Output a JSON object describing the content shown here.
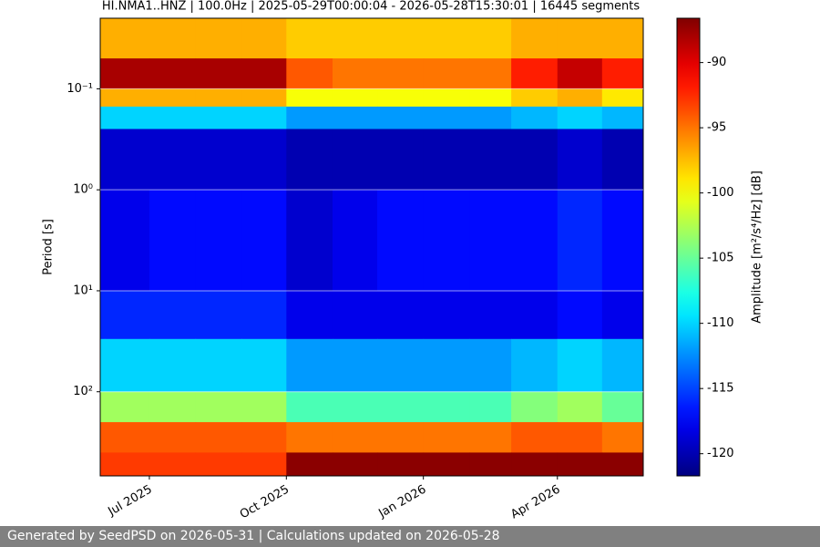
{
  "chart_data": {
    "type": "heatmap",
    "title": "HI.NMA1..HNZ | 100.0Hz | 2025-05-29T00:00:04 - 2026-05-28T15:30:01 | 16445 segments",
    "y_label": "Period [s]",
    "colorbar_label": "Amplitude [m²/s⁴/Hz] [dB]",
    "colormap": "jet",
    "x": [
      "2025-05",
      "2025-06",
      "2025-07",
      "2025-08",
      "2025-09",
      "2025-10",
      "2025-11",
      "2025-12",
      "2026-01",
      "2026-02",
      "2026-03",
      "2026-04",
      "2026-05"
    ],
    "xlim": [
      "2025-05-29T00:00:04",
      "2026-05-28T15:30:01"
    ],
    "xticks": [
      {
        "value": "2025-07",
        "label": "Jul 2025"
      },
      {
        "value": "2025-10",
        "label": "Oct 2025"
      },
      {
        "value": "2026-01",
        "label": "Jan 2026"
      },
      {
        "value": "2026-04",
        "label": "Apr 2026"
      }
    ],
    "y_bins": [
      0.02,
      0.05,
      0.1,
      0.15,
      0.25,
      1,
      10,
      30,
      100,
      200,
      400,
      681
    ],
    "ylim": [
      0.02,
      681
    ],
    "log_y": true,
    "yticks": [
      {
        "value": 0.1,
        "label": "10⁻¹"
      },
      {
        "value": 1,
        "label": "10⁰"
      },
      {
        "value": 10,
        "label": "10¹"
      },
      {
        "value": 100,
        "label": "10²"
      }
    ],
    "grid": true,
    "clim": [
      -121.7,
      -86.6
    ],
    "cticks": [
      -120,
      -115,
      -110,
      -105,
      -100,
      -95,
      -90
    ],
    "values": [
      [
        -97,
        -97,
        -97,
        -97,
        -97,
        -98,
        -98,
        -98,
        -98,
        -98,
        -97,
        -97,
        -97
      ],
      [
        -88,
        -88,
        -88,
        -88,
        -88,
        -94,
        -95,
        -95,
        -95,
        -95,
        -92,
        -89,
        -92
      ],
      [
        -97,
        -97,
        -97,
        -97,
        -97,
        -100,
        -100,
        -100,
        -100,
        -100,
        -98,
        -97,
        -99
      ],
      [
        -110,
        -110,
        -110,
        -110,
        -110,
        -112,
        -112,
        -112,
        -112,
        -112,
        -111,
        -110,
        -111
      ],
      [
        -119,
        -119,
        -119,
        -119,
        -119,
        -120,
        -120,
        -120,
        -120,
        -120,
        -120,
        -119,
        -120
      ],
      [
        -118,
        -118,
        -117,
        -117,
        -117,
        -119,
        -118,
        -117,
        -117,
        -117,
        -117,
        -116,
        -117
      ],
      [
        -116,
        -116,
        -116,
        -116,
        -116,
        -118,
        -118,
        -118,
        -118,
        -118,
        -118,
        -117,
        -118
      ],
      [
        -110,
        -110,
        -110,
        -110,
        -110,
        -112,
        -112,
        -112,
        -112,
        -112,
        -111,
        -110,
        -111
      ],
      [
        -103,
        -103,
        -103,
        -103,
        -103,
        -106,
        -106,
        -106,
        -106,
        -106,
        -104,
        -103,
        -105
      ],
      [
        -94,
        -94,
        -94,
        -94,
        -94,
        -95,
        -95,
        -95,
        -95,
        -95,
        -94,
        -94,
        -95
      ],
      [
        -93,
        -93,
        -93,
        -93,
        -93,
        -87,
        -87,
        -87,
        -87,
        -87,
        -87,
        -87,
        -87
      ]
    ]
  },
  "footer": "Generated by SeedPSD on 2026-05-31 | Calculations updated on 2026-05-28"
}
